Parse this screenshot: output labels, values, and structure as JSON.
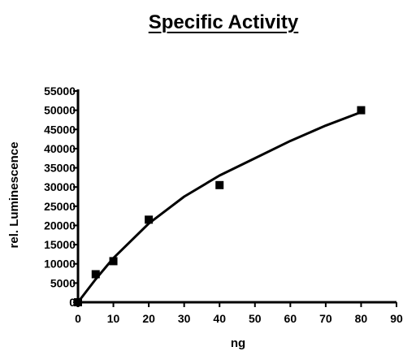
{
  "chart_data": {
    "type": "scatter",
    "title": "Specific Activity",
    "xlabel": "ng",
    "ylabel": "rel. Luminescence",
    "xlim": [
      0,
      90
    ],
    "ylim": [
      0,
      55000
    ],
    "x_ticks": [
      "0",
      "10",
      "20",
      "30",
      "40",
      "50",
      "60",
      "70",
      "80",
      "90"
    ],
    "y_ticks": [
      "0",
      "5000",
      "10000",
      "15000",
      "20000",
      "25000",
      "30000",
      "35000",
      "40000",
      "45000",
      "50000",
      "55000"
    ],
    "grid": false,
    "series": [
      {
        "marker": "square",
        "color": "#000000",
        "points": [
          [
            0,
            0
          ],
          [
            5,
            7300
          ],
          [
            10,
            10700
          ],
          [
            20,
            21500
          ],
          [
            40,
            30500
          ],
          [
            80,
            50000
          ]
        ]
      },
      {
        "style": "line",
        "color": "#000000",
        "points": [
          [
            0,
            0
          ],
          [
            5,
            6000
          ],
          [
            10,
            11500
          ],
          [
            20,
            20500
          ],
          [
            30,
            27500
          ],
          [
            40,
            33000
          ],
          [
            50,
            37500
          ],
          [
            60,
            42000
          ],
          [
            70,
            46000
          ],
          [
            80,
            49500
          ]
        ]
      }
    ]
  }
}
